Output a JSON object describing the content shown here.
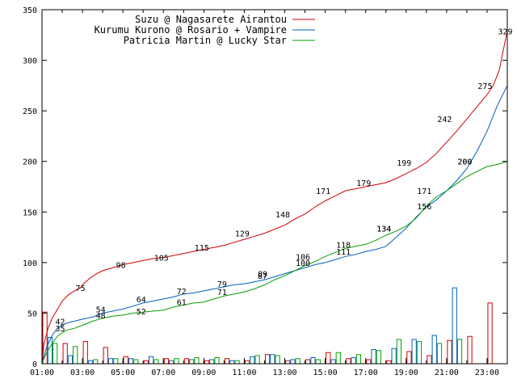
{
  "chart_data": {
    "type": "line",
    "title": "",
    "xlabel": "",
    "ylabel": "",
    "ylim": [
      0,
      350
    ],
    "y_ticks": [
      0,
      50,
      100,
      150,
      200,
      250,
      300,
      350
    ],
    "x_ticks": [
      "01:00",
      "03:00",
      "05:00",
      "07:00",
      "09:00",
      "11:00",
      "13:00",
      "15:00",
      "17:00",
      "19:00",
      "21:00",
      "23:00"
    ],
    "grid": false,
    "legend_position": "top-right",
    "series": [
      {
        "name": "Suzu @ Nagasarete Airantou",
        "color": "#d00000",
        "cumulative_points": [
          [
            1.0,
            0
          ],
          [
            1.1,
            20
          ],
          [
            1.3,
            35
          ],
          [
            1.5,
            45
          ],
          [
            1.8,
            55
          ],
          [
            2.0,
            62
          ],
          [
            2.3,
            68
          ],
          [
            2.6,
            72
          ],
          [
            2.9,
            75
          ],
          [
            3.1,
            80
          ],
          [
            3.4,
            85
          ],
          [
            3.7,
            89
          ],
          [
            4.0,
            92
          ],
          [
            4.5,
            95
          ],
          [
            5.0,
            98
          ],
          [
            5.5,
            100
          ],
          [
            6.0,
            102
          ],
          [
            6.5,
            104
          ],
          [
            7.0,
            105
          ],
          [
            7.5,
            107
          ],
          [
            8.0,
            109
          ],
          [
            8.5,
            111
          ],
          [
            9.0,
            113
          ],
          [
            9.5,
            115
          ],
          [
            10.0,
            117
          ],
          [
            10.5,
            120
          ],
          [
            11.0,
            123
          ],
          [
            11.5,
            126
          ],
          [
            12.0,
            129
          ],
          [
            12.5,
            133
          ],
          [
            13.0,
            137
          ],
          [
            13.5,
            143
          ],
          [
            14.0,
            148
          ],
          [
            14.5,
            155
          ],
          [
            15.0,
            161
          ],
          [
            15.5,
            166
          ],
          [
            16.0,
            171
          ],
          [
            16.5,
            173
          ],
          [
            17.0,
            175
          ],
          [
            17.5,
            177
          ],
          [
            18.0,
            179
          ],
          [
            18.5,
            183
          ],
          [
            19.0,
            188
          ],
          [
            19.5,
            193
          ],
          [
            20.0,
            199
          ],
          [
            20.5,
            208
          ],
          [
            21.0,
            219
          ],
          [
            21.5,
            230
          ],
          [
            22.0,
            242
          ],
          [
            22.5,
            254
          ],
          [
            23.0,
            266
          ],
          [
            23.3,
            275
          ],
          [
            23.6,
            290
          ],
          [
            23.8,
            310
          ],
          [
            24.0,
            329
          ]
        ],
        "point_labels": [
          [
            2.9,
            75
          ],
          [
            4.9,
            98
          ],
          [
            6.9,
            105
          ],
          [
            8.9,
            115
          ],
          [
            10.9,
            129
          ],
          [
            12.9,
            148
          ],
          [
            14.9,
            171
          ],
          [
            16.9,
            179
          ],
          [
            18.9,
            199
          ],
          [
            20.9,
            242
          ],
          [
            22.9,
            275
          ],
          [
            23.9,
            329
          ]
        ],
        "hourly_counts": [
          51,
          20,
          22,
          16,
          7,
          3,
          5,
          5,
          3,
          5,
          3,
          9,
          3,
          4,
          11,
          5,
          4,
          3,
          12,
          8,
          23,
          27,
          60,
          0
        ]
      },
      {
        "name": "Kurumu Kurono @ Rosario + Vampire",
        "color": "#0060c0",
        "cumulative_points": [
          [
            1.0,
            0
          ],
          [
            1.2,
            15
          ],
          [
            1.5,
            28
          ],
          [
            1.8,
            36
          ],
          [
            2.2,
            40
          ],
          [
            2.6,
            42
          ],
          [
            3.0,
            44
          ],
          [
            3.5,
            46
          ],
          [
            4.0,
            50
          ],
          [
            4.5,
            52
          ],
          [
            5.0,
            54
          ],
          [
            5.5,
            57
          ],
          [
            6.0,
            60
          ],
          [
            6.5,
            62
          ],
          [
            7.0,
            64
          ],
          [
            7.5,
            66
          ],
          [
            8.0,
            69
          ],
          [
            8.5,
            70
          ],
          [
            9.0,
            72
          ],
          [
            9.5,
            74
          ],
          [
            10.0,
            76
          ],
          [
            10.5,
            78
          ],
          [
            11.0,
            79
          ],
          [
            11.5,
            81
          ],
          [
            12.0,
            83
          ],
          [
            12.5,
            86
          ],
          [
            13.0,
            89
          ],
          [
            13.5,
            92
          ],
          [
            14.0,
            95
          ],
          [
            14.5,
            98
          ],
          [
            15.0,
            100
          ],
          [
            15.5,
            103
          ],
          [
            16.0,
            106
          ],
          [
            16.5,
            108
          ],
          [
            17.0,
            111
          ],
          [
            17.5,
            113
          ],
          [
            18.0,
            116
          ],
          [
            18.5,
            125
          ],
          [
            19.0,
            134
          ],
          [
            19.5,
            145
          ],
          [
            20.0,
            155
          ],
          [
            20.5,
            162
          ],
          [
            21.0,
            171
          ],
          [
            21.5,
            181
          ],
          [
            22.0,
            193
          ],
          [
            22.5,
            210
          ],
          [
            23.0,
            230
          ],
          [
            23.5,
            255
          ],
          [
            24.0,
            275
          ]
        ],
        "point_labels": [
          [
            1.9,
            42
          ],
          [
            3.9,
            54
          ],
          [
            5.9,
            64
          ],
          [
            7.9,
            72
          ],
          [
            9.9,
            79
          ],
          [
            11.9,
            89
          ],
          [
            13.9,
            100
          ],
          [
            15.9,
            111
          ],
          [
            17.9,
            134
          ],
          [
            19.9,
            171
          ],
          [
            21.9,
            200
          ]
        ],
        "hourly_counts": [
          26,
          8,
          3,
          5,
          5,
          7,
          3,
          4,
          4,
          3,
          7,
          9,
          4,
          6,
          4,
          6,
          14,
          15,
          24,
          28,
          75,
          0,
          0,
          0
        ]
      },
      {
        "name": "Patricia Martin @ Lucky Star",
        "color": "#00a000",
        "cumulative_points": [
          [
            1.0,
            0
          ],
          [
            1.2,
            10
          ],
          [
            1.5,
            20
          ],
          [
            1.8,
            28
          ],
          [
            2.2,
            33
          ],
          [
            2.6,
            35
          ],
          [
            3.0,
            38
          ],
          [
            3.5,
            42
          ],
          [
            4.0,
            45
          ],
          [
            4.5,
            47
          ],
          [
            5.0,
            48
          ],
          [
            5.5,
            50
          ],
          [
            6.0,
            51
          ],
          [
            6.5,
            52
          ],
          [
            7.0,
            53
          ],
          [
            7.5,
            56
          ],
          [
            8.0,
            58
          ],
          [
            8.5,
            60
          ],
          [
            9.0,
            61
          ],
          [
            9.5,
            64
          ],
          [
            10.0,
            67
          ],
          [
            10.5,
            69
          ],
          [
            11.0,
            71
          ],
          [
            11.5,
            74
          ],
          [
            12.0,
            78
          ],
          [
            12.5,
            83
          ],
          [
            13.0,
            87
          ],
          [
            13.5,
            92
          ],
          [
            14.0,
            97
          ],
          [
            14.5,
            101
          ],
          [
            15.0,
            106
          ],
          [
            15.5,
            110
          ],
          [
            16.0,
            114
          ],
          [
            16.5,
            116
          ],
          [
            17.0,
            118
          ],
          [
            17.5,
            122
          ],
          [
            18.0,
            127
          ],
          [
            18.5,
            131
          ],
          [
            19.0,
            136
          ],
          [
            19.5,
            144
          ],
          [
            20.0,
            156
          ],
          [
            20.5,
            165
          ],
          [
            21.0,
            171
          ],
          [
            21.5,
            178
          ],
          [
            22.0,
            185
          ],
          [
            22.5,
            190
          ],
          [
            23.0,
            195
          ],
          [
            23.5,
            197
          ],
          [
            24.0,
            200
          ]
        ],
        "point_labels": [
          [
            1.9,
            35
          ],
          [
            3.9,
            48
          ],
          [
            5.9,
            52
          ],
          [
            7.9,
            61
          ],
          [
            9.9,
            71
          ],
          [
            11.9,
            87
          ],
          [
            13.9,
            106
          ],
          [
            15.9,
            118
          ],
          [
            17.9,
            134
          ],
          [
            19.9,
            156
          ],
          [
            21.9,
            200
          ]
        ],
        "hourly_counts": [
          20,
          17,
          4,
          5,
          4,
          4,
          5,
          6,
          6,
          3,
          8,
          8,
          5,
          4,
          11,
          9,
          13,
          24,
          22,
          20,
          24,
          0,
          0,
          0
        ]
      }
    ]
  }
}
